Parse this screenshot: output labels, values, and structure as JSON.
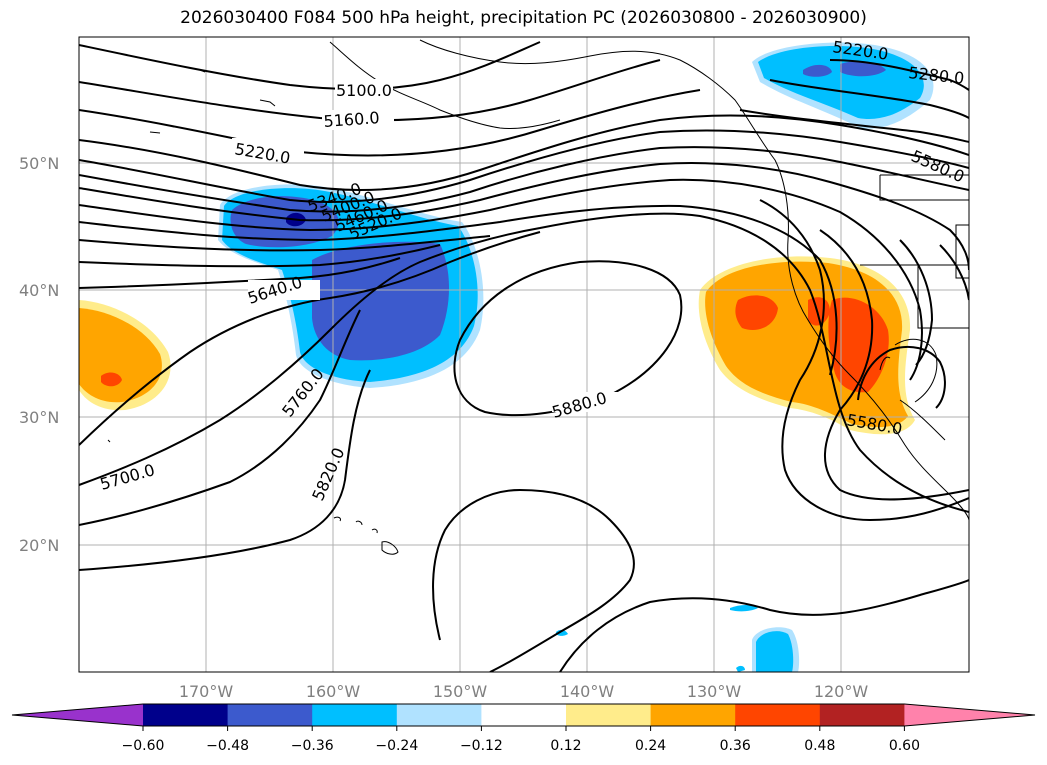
{
  "title": "2026030400 F084 500 hPa height, precipitation PC (2026030800 - 2026030900)",
  "map": {
    "lat_labels": [
      "50°N",
      "40°N",
      "30°N",
      "20°N"
    ],
    "lon_labels": [
      "170°W",
      "160°W",
      "150°W",
      "140°W",
      "130°W",
      "120°W"
    ],
    "contour_labels": [
      "5100.0",
      "5160.0",
      "5220.0",
      "5340.0",
      "5400.0",
      "5460.0",
      "5520.0",
      "5640.0",
      "5700.0",
      "5760.0",
      "5820.0",
      "5880.0",
      "5580.0",
      "5580.0",
      "5220.0",
      "5280.0"
    ]
  },
  "colorbar": {
    "tick_labels": [
      "−0.60",
      "−0.48",
      "−0.36",
      "−0.24",
      "−0.12",
      "0.12",
      "0.24",
      "0.36",
      "0.48",
      "0.60"
    ],
    "colors": [
      "#9932cc",
      "#00008b",
      "#3c5acd",
      "#00bfff",
      "#b0e2ff",
      "#ffffff",
      "#ffec8b",
      "#ffa500",
      "#ff4500",
      "#b22222",
      "#ff82ab"
    ]
  }
}
